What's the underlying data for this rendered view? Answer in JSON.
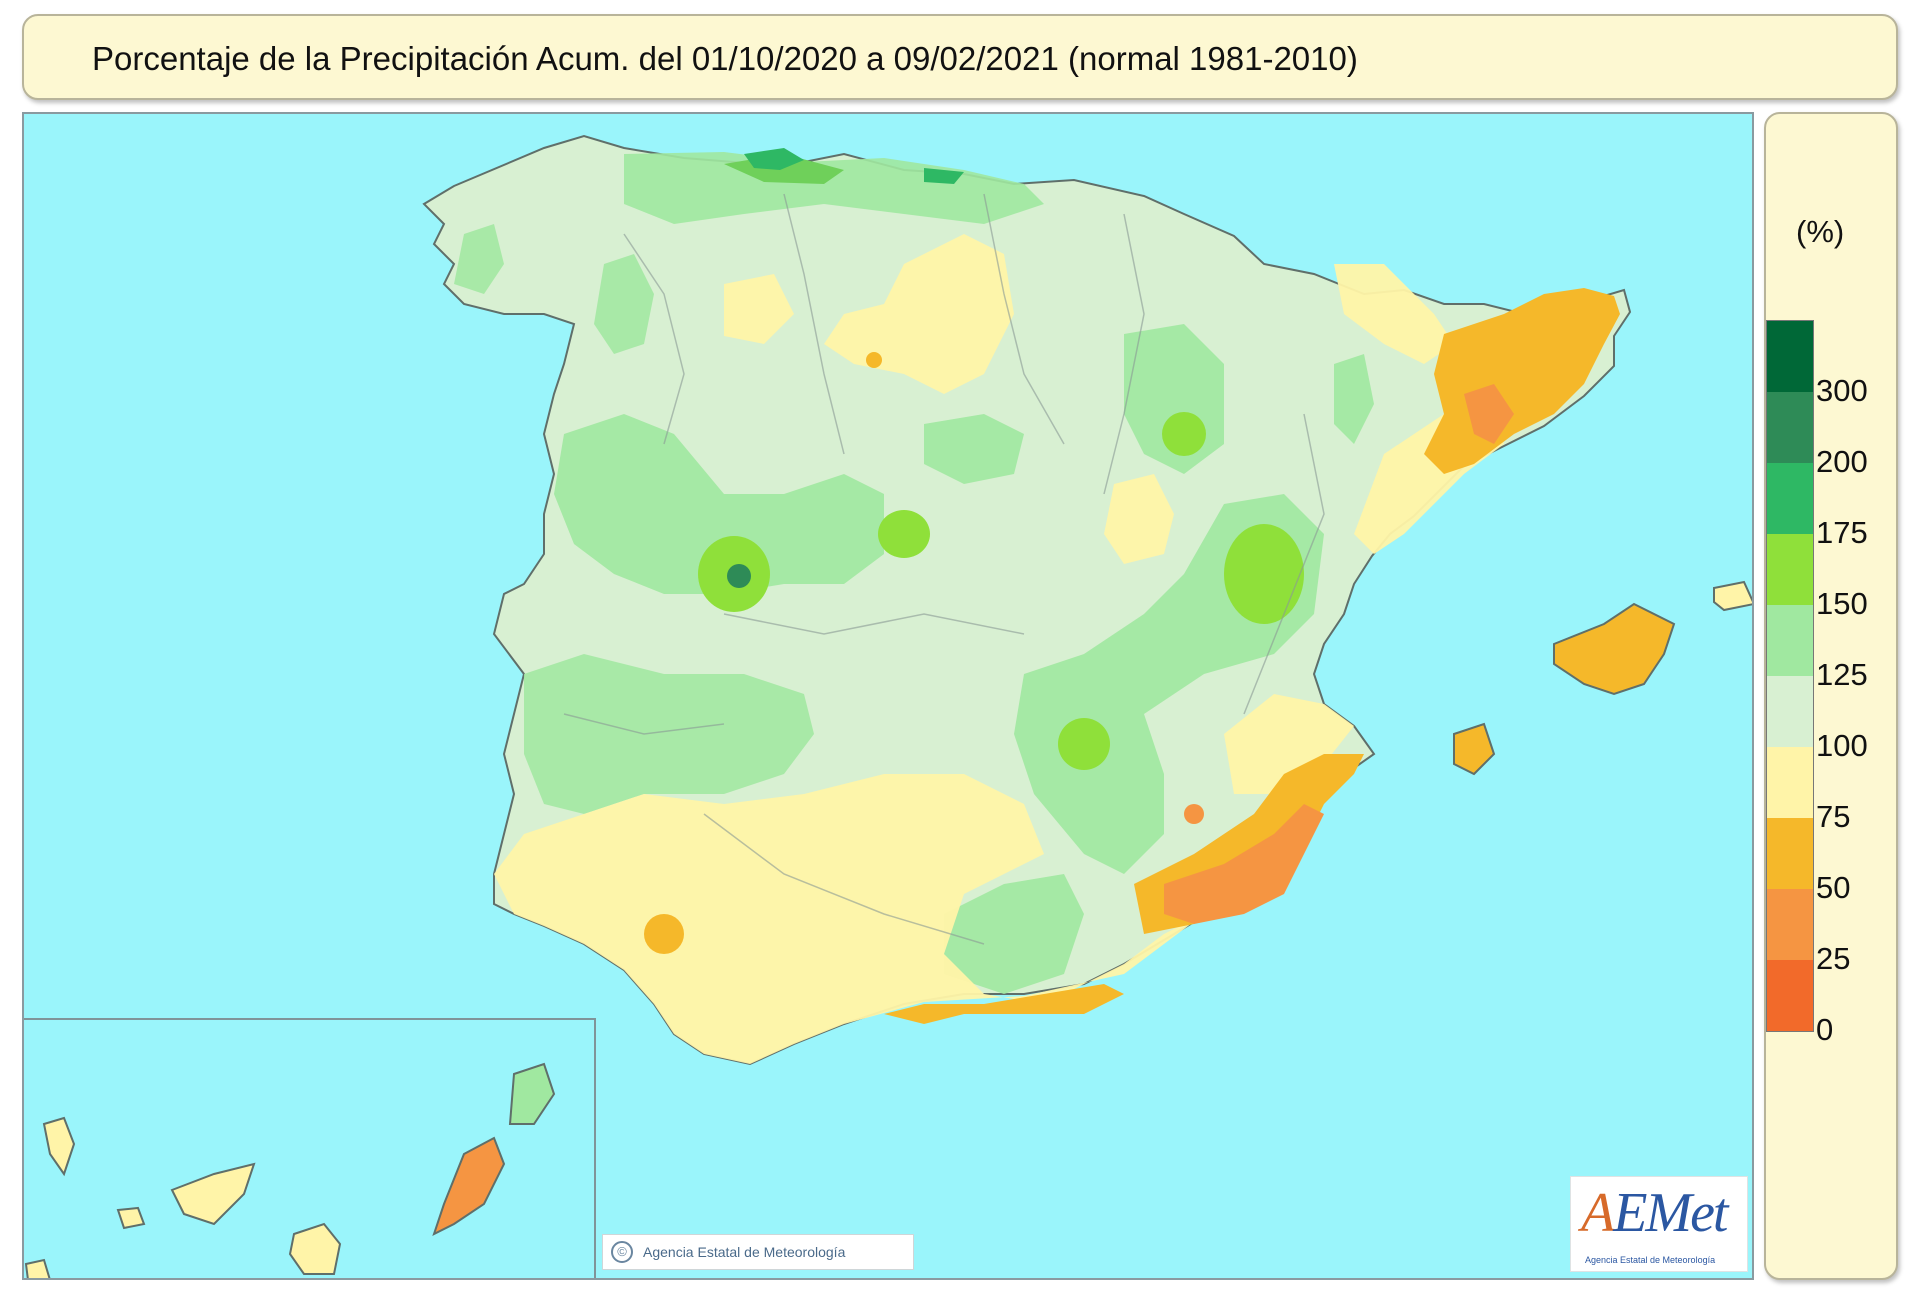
{
  "header": {
    "title": "Porcentaje de la Precipitación Acum. del 01/10/2020 a  09/02/2021  (normal 1981-2010)"
  },
  "legend": {
    "unit": "(%)",
    "tick_labels": [
      "300",
      "200",
      "175",
      "150",
      "125",
      "100",
      "75",
      "50",
      "25",
      "0"
    ],
    "colors": [
      "#006837",
      "#2e8b57",
      "#2eb864",
      "#8fe03a",
      "#a0e8a0",
      "#d8f0d2",
      "#fff4a8",
      "#f5b82a",
      "#f59542",
      "#f26a2a"
    ]
  },
  "map": {
    "sea_color": "#9af5fb",
    "copyright": "Agencia Estatal de Meteorología",
    "copyright_symbol": "©",
    "logo": {
      "text_a": "A",
      "text_rest": "EMet",
      "subtitle": "Agencia Estatal de Meteorología"
    }
  }
}
